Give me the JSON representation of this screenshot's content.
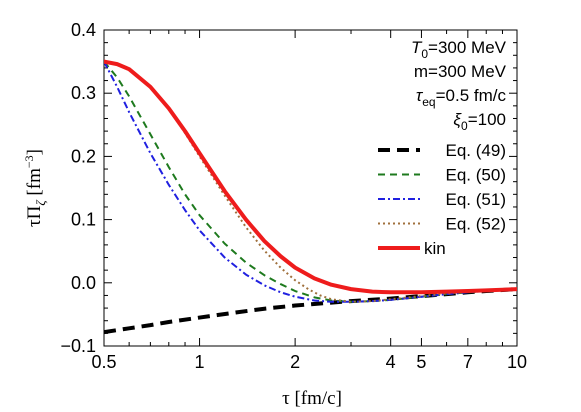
{
  "chart_data": {
    "type": "line",
    "xlabel": "τ [fm/c]",
    "ylabel": "τΠ_ζ [fm^-3]",
    "x_scale": "log",
    "xlim": [
      0.5,
      10
    ],
    "ylim": [
      -0.1,
      0.4
    ],
    "x_ticks": [
      0.5,
      1,
      2,
      4,
      5,
      7,
      10
    ],
    "x_tick_labels": [
      "0.5",
      "1",
      "2",
      "4",
      "5",
      "7",
      "10"
    ],
    "y_ticks": [
      -0.1,
      0.0,
      0.1,
      0.2,
      0.3,
      0.4
    ],
    "y_tick_labels": [
      "−0.1",
      "0.0",
      "0.1",
      "0.2",
      "0.3",
      "0.4"
    ],
    "grid": false,
    "legend_position": "top-right",
    "parameters": [
      {
        "symbol": "T",
        "sub": "0",
        "value": "=300 MeV"
      },
      {
        "symbol": "m",
        "sub": "",
        "value": "=300 MeV"
      },
      {
        "symbol": "τ",
        "sub": "eq",
        "value": "=0.5 fm/c"
      },
      {
        "symbol": "ξ",
        "sub": "0",
        "value": "=100"
      }
    ],
    "series": [
      {
        "name": "Eq. (49)",
        "color": "#000000",
        "style": "dashed-thick",
        "x": [
          0.5,
          0.6,
          0.7,
          0.8,
          1.0,
          1.3,
          1.6,
          2.0,
          2.5,
          3.0,
          4.0,
          5.0,
          6.0,
          7.0,
          8.0,
          10.0
        ],
        "y": [
          -0.078,
          -0.072,
          -0.067,
          -0.062,
          -0.055,
          -0.047,
          -0.041,
          -0.036,
          -0.032,
          -0.029,
          -0.025,
          -0.021,
          -0.018,
          -0.015,
          -0.013,
          -0.01
        ]
      },
      {
        "name": "Eq. (50)",
        "color": "#1e7a1e",
        "style": "dashed",
        "x": [
          0.5,
          0.55,
          0.6,
          0.7,
          0.8,
          0.9,
          1.0,
          1.2,
          1.4,
          1.6,
          1.8,
          2.0,
          2.3,
          2.6,
          3.0,
          3.5,
          4.0,
          5.0,
          6.0,
          7.0,
          8.0,
          10.0
        ],
        "y": [
          0.35,
          0.325,
          0.295,
          0.235,
          0.183,
          0.14,
          0.107,
          0.062,
          0.032,
          0.012,
          -0.002,
          -0.013,
          -0.023,
          -0.028,
          -0.03,
          -0.029,
          -0.027,
          -0.022,
          -0.018,
          -0.015,
          -0.013,
          -0.01
        ]
      },
      {
        "name": "Eq. (51)",
        "color": "#2020e0",
        "style": "dashdot",
        "x": [
          0.5,
          0.55,
          0.6,
          0.7,
          0.8,
          0.9,
          1.0,
          1.2,
          1.4,
          1.6,
          1.8,
          2.0,
          2.3,
          2.6,
          3.0,
          3.5,
          4.0,
          5.0,
          6.0,
          7.0,
          8.0,
          10.0
        ],
        "y": [
          0.35,
          0.31,
          0.27,
          0.205,
          0.155,
          0.115,
          0.083,
          0.04,
          0.013,
          -0.004,
          -0.015,
          -0.022,
          -0.028,
          -0.03,
          -0.03,
          -0.029,
          -0.027,
          -0.022,
          -0.018,
          -0.015,
          -0.013,
          -0.01
        ]
      },
      {
        "name": "Eq. (52)",
        "color": "#a0703c",
        "style": "dotted",
        "x": [
          0.5,
          0.55,
          0.6,
          0.7,
          0.8,
          0.9,
          1.0,
          1.2,
          1.4,
          1.6,
          1.8,
          2.0,
          2.2,
          2.4,
          2.6,
          3.0,
          3.5,
          4.0,
          5.0,
          6.0,
          7.0,
          8.0,
          10.0
        ],
        "y": [
          0.35,
          0.345,
          0.337,
          0.31,
          0.275,
          0.237,
          0.2,
          0.138,
          0.088,
          0.051,
          0.024,
          0.004,
          -0.01,
          -0.02,
          -0.026,
          -0.03,
          -0.029,
          -0.026,
          -0.021,
          -0.017,
          -0.014,
          -0.012,
          -0.01
        ]
      },
      {
        "name": "kin",
        "color": "#ee1c1c",
        "style": "solid-thick",
        "x": [
          0.5,
          0.55,
          0.6,
          0.7,
          0.8,
          0.9,
          1.0,
          1.2,
          1.4,
          1.6,
          1.8,
          2.0,
          2.3,
          2.6,
          3.0,
          3.5,
          4.0,
          5.0,
          6.0,
          7.0,
          8.0,
          10.0
        ],
        "y": [
          0.35,
          0.346,
          0.338,
          0.31,
          0.276,
          0.24,
          0.205,
          0.145,
          0.1,
          0.066,
          0.042,
          0.024,
          0.007,
          -0.003,
          -0.01,
          -0.014,
          -0.015,
          -0.015,
          -0.014,
          -0.013,
          -0.012,
          -0.01
        ]
      }
    ]
  }
}
